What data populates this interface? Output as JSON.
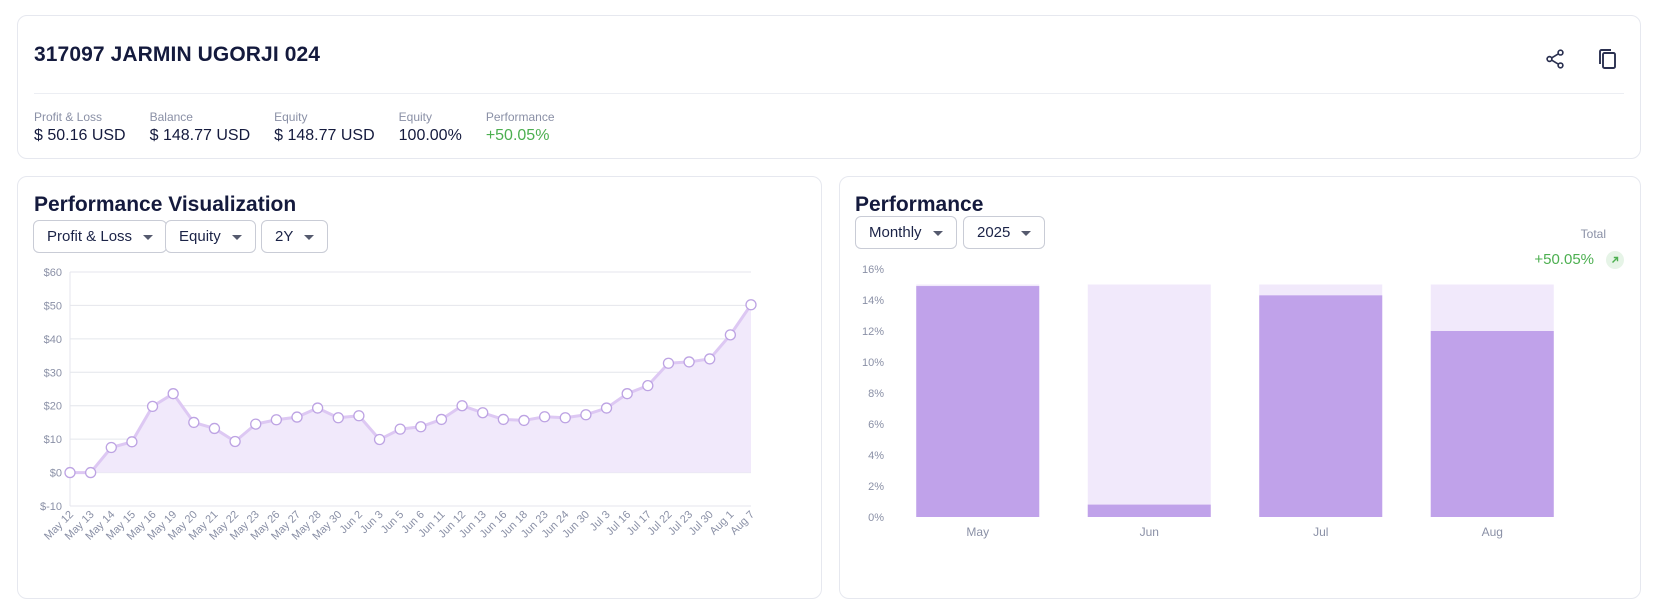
{
  "account": {
    "title": "317097 JARMIN UGORJI 024",
    "stats": [
      {
        "label": "Profit & Loss",
        "value": "$ 50.16 USD",
        "color": "#141a3d"
      },
      {
        "label": "Balance",
        "value": "$ 148.77 USD",
        "color": "#141a3d"
      },
      {
        "label": "Equity",
        "value": "$ 148.77 USD",
        "color": "#141a3d"
      },
      {
        "label": "Equity",
        "value": "100.00%",
        "color": "#141a3d"
      },
      {
        "label": "Performance",
        "value": "+50.05%",
        "color": "#4caf50"
      }
    ],
    "icons": [
      "share-icon",
      "copy-icon"
    ]
  },
  "perf_vis": {
    "title": "Performance Visualization",
    "dropdowns": {
      "metric": "Profit & Loss",
      "mode": "Equity",
      "range": "2Y"
    }
  },
  "perf": {
    "title": "Performance",
    "dropdowns": {
      "period": "Monthly",
      "year": "2025"
    },
    "total_label": "Total",
    "total_value": "+50.05%"
  },
  "colors": {
    "accent": "#c0a2ea",
    "accent_light": "#f1e9fb",
    "line": "#ddc8f3",
    "green": "#4caf50"
  },
  "chart_data": [
    {
      "type": "area",
      "y_tick_labels": [
        "$60",
        "$50",
        "$40",
        "$30",
        "$20",
        "$10",
        "$0",
        "$-10"
      ],
      "y_ticks": [
        60,
        50,
        40,
        30,
        20,
        10,
        0,
        -10
      ],
      "ylim": [
        -10,
        60
      ],
      "categories": [
        "May 12",
        "May 13",
        "May 14",
        "May 15",
        "May 16",
        "May 19",
        "May 20",
        "May 21",
        "May 22",
        "May 23",
        "May 26",
        "May 27",
        "May 28",
        "May 30",
        "Jun 2",
        "Jun 3",
        "Jun 5",
        "Jun 6",
        "Jun 11",
        "Jun 12",
        "Jun 13",
        "Jun 16",
        "Jun 18",
        "Jun 23",
        "Jun 24",
        "Jun 30",
        "Jul 3",
        "Jul 16",
        "Jul 17",
        "Jul 22",
        "Jul 23",
        "Jul 30",
        "Aug 1",
        "Aug 7"
      ],
      "values": [
        0,
        0,
        7.5,
        9.2,
        19.8,
        23.6,
        15,
        13.2,
        9.3,
        14.5,
        15.8,
        16.6,
        19.3,
        16.4,
        17,
        9.9,
        13,
        13.7,
        15.9,
        20,
        17.9,
        15.9,
        15.6,
        16.7,
        16.4,
        17.3,
        19.3,
        23.6,
        26,
        32.7,
        33.1,
        34,
        41.2,
        50.2
      ],
      "grid": true
    },
    {
      "type": "bar",
      "y_tick_labels": [
        "16%",
        "14%",
        "12%",
        "10%",
        "8%",
        "6%",
        "4%",
        "2%",
        "0%"
      ],
      "y_ticks": [
        16,
        14,
        12,
        10,
        8,
        6,
        4,
        2,
        0
      ],
      "ylim": [
        0,
        16
      ],
      "categories": [
        "May",
        "Jun",
        "Jul",
        "Aug"
      ],
      "values": [
        14.9,
        0.8,
        14.3,
        12
      ],
      "background_max": 15,
      "grid": false
    }
  ]
}
